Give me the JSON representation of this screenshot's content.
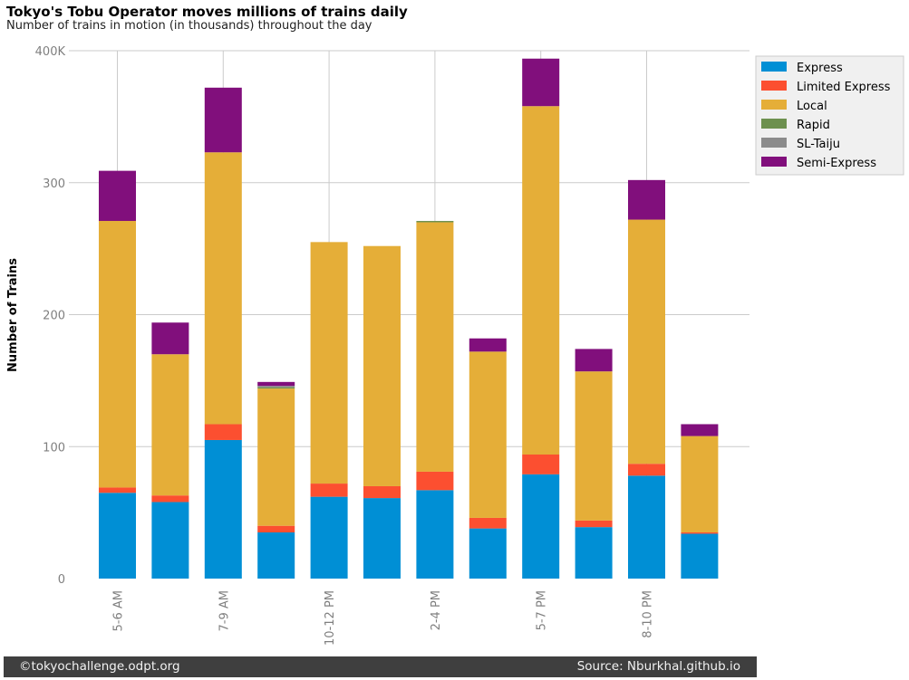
{
  "chart_data": {
    "type": "bar",
    "stacked": true,
    "title": "Tokyo's Tobu Operator moves millions of trains daily",
    "subtitle": "Number of trains in motion (in thousands) throughout the day",
    "ylabel": "Number of Trains",
    "xlabel": "",
    "ylim": [
      0,
      400
    ],
    "yticks": [
      0,
      100,
      200,
      300,
      400
    ],
    "ytick_labels": [
      "0",
      "100",
      "200",
      "300",
      "400K"
    ],
    "grid": true,
    "legend_position": "top-right, outside plot",
    "categories": [
      "5-6 AM",
      "",
      "7-9 AM",
      "",
      "10-12 PM",
      "",
      "2-4 PM",
      "",
      "5-7 PM",
      "",
      "8-10 PM",
      ""
    ],
    "xtick_labels": [
      "5-6 AM",
      "7-9 AM",
      "10-12 PM",
      "2-4 PM",
      "5-7 PM",
      "8-10 PM"
    ],
    "series": [
      {
        "name": "Express",
        "color": "#008fd5",
        "values": [
          65,
          58,
          105,
          35,
          62,
          61,
          67,
          38,
          79,
          39,
          78,
          34
        ]
      },
      {
        "name": "Limited Express",
        "color": "#fc4f30",
        "values": [
          4,
          5,
          12,
          5,
          10,
          9,
          14,
          8,
          15,
          5,
          9,
          1
        ]
      },
      {
        "name": "Local",
        "color": "#e5ae38",
        "values": [
          202,
          107,
          206,
          104,
          183,
          182,
          189,
          126,
          264,
          113,
          185,
          73
        ]
      },
      {
        "name": "Rapid",
        "color": "#6d904f",
        "values": [
          0,
          0,
          0,
          1,
          0,
          0,
          1,
          0,
          0,
          0,
          0,
          0
        ]
      },
      {
        "name": "SL-Taiju",
        "color": "#8b8b8b",
        "values": [
          0,
          0,
          0,
          1,
          0,
          0,
          0,
          0,
          0,
          0,
          0,
          0
        ]
      },
      {
        "name": "Semi-Express",
        "color": "#810f7c",
        "values": [
          38,
          24,
          49,
          3,
          0,
          0,
          0,
          10,
          36,
          17,
          30,
          9
        ]
      }
    ]
  },
  "footer": {
    "left": "©tokyochallenge.odpt.org",
    "right": "Source: Nburkhal.github.io"
  }
}
